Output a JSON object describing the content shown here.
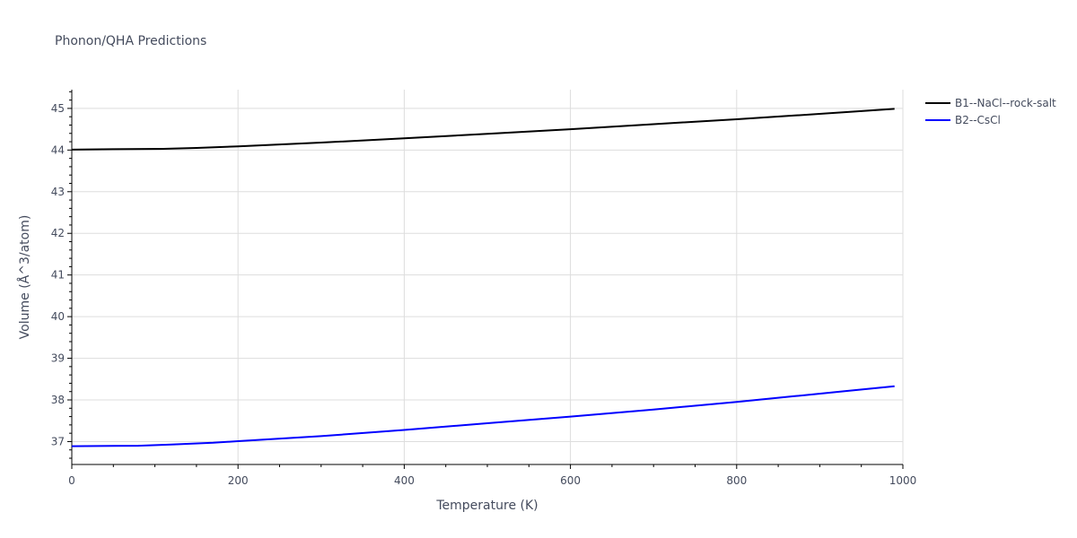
{
  "chart_data": {
    "type": "line",
    "title": "Phonon/QHA Predictions",
    "xlabel": "Temperature (K)",
    "ylabel": "Volume (Å^3/atom)",
    "xlim": [
      0,
      1000
    ],
    "ylim": [
      36.45,
      45.45
    ],
    "xticks": [
      0,
      200,
      400,
      600,
      800,
      1000
    ],
    "yticks": [
      37,
      38,
      39,
      40,
      41,
      42,
      43,
      44,
      45
    ],
    "grid": true,
    "legend_position": "top-right",
    "series": [
      {
        "name": "B1--NaCl--rock-salt",
        "color": "#000000",
        "x": [
          0,
          50,
          110,
          150,
          200,
          300,
          400,
          500,
          600,
          700,
          800,
          870,
          930,
          990
        ],
        "y": [
          44.01,
          44.02,
          44.03,
          44.05,
          44.09,
          44.18,
          44.28,
          44.39,
          44.5,
          44.62,
          44.74,
          44.83,
          44.91,
          44.99
        ]
      },
      {
        "name": "B2--CsCl",
        "color": "#0000ff",
        "x": [
          0,
          80,
          120,
          170,
          200,
          300,
          400,
          500,
          600,
          700,
          800,
          870,
          930,
          990
        ],
        "y": [
          36.89,
          36.9,
          36.93,
          36.97,
          37.01,
          37.13,
          37.28,
          37.44,
          37.6,
          37.77,
          37.95,
          38.09,
          38.21,
          38.33
        ]
      }
    ]
  }
}
